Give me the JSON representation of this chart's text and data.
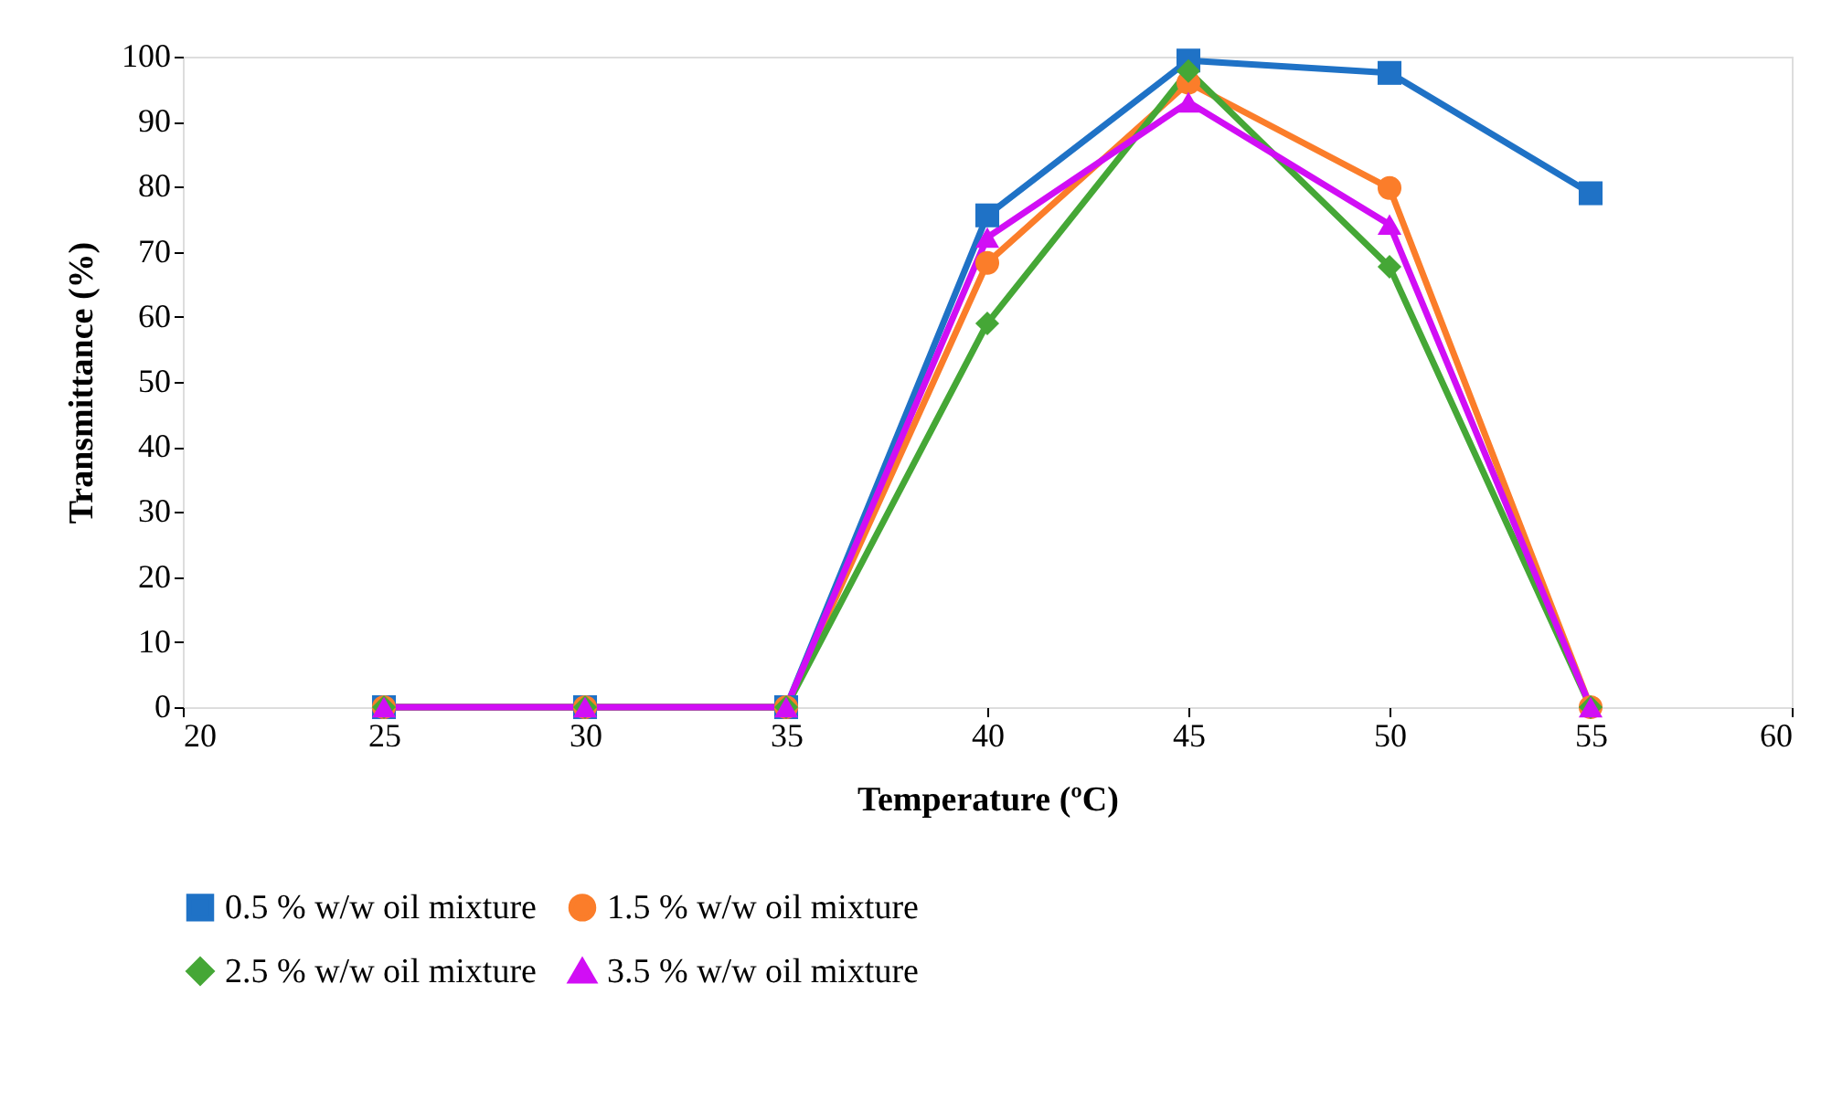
{
  "chart_data": {
    "type": "line",
    "xlabel": "Temperature (ºC)",
    "ylabel": "Transmittance (%)",
    "x": [
      25,
      30,
      35,
      40,
      45,
      50,
      55
    ],
    "xlim": [
      20,
      60
    ],
    "xticks": [
      20,
      25,
      30,
      35,
      40,
      45,
      50,
      55,
      60
    ],
    "ylim": [
      0,
      100
    ],
    "yticks": [
      0,
      10,
      20,
      30,
      40,
      50,
      60,
      70,
      80,
      90,
      100
    ],
    "grid": false,
    "legend": "bottom",
    "line_style": "solid",
    "series": [
      {
        "name": "0.5 % w/w oil mixture",
        "color": "#1f72c6",
        "marker": "square",
        "values": [
          0,
          0,
          0,
          75.6,
          99.4,
          97.5,
          79
        ]
      },
      {
        "name": "1.5 % w/w oil mixture",
        "color": "#fb7d2a",
        "marker": "circle",
        "values": [
          0,
          0,
          0,
          68.3,
          96,
          79.8,
          0
        ]
      },
      {
        "name": "2.5 % w/w oil mixture",
        "color": "#45a736",
        "marker": "diamond",
        "values": [
          0,
          0,
          0,
          59,
          97.8,
          67.7,
          0
        ]
      },
      {
        "name": "3.5 % w/w oil mixture",
        "color": "#d10ef5",
        "marker": "triangle",
        "values": [
          0,
          0,
          0,
          72.2,
          93,
          74.2,
          0
        ]
      }
    ]
  }
}
